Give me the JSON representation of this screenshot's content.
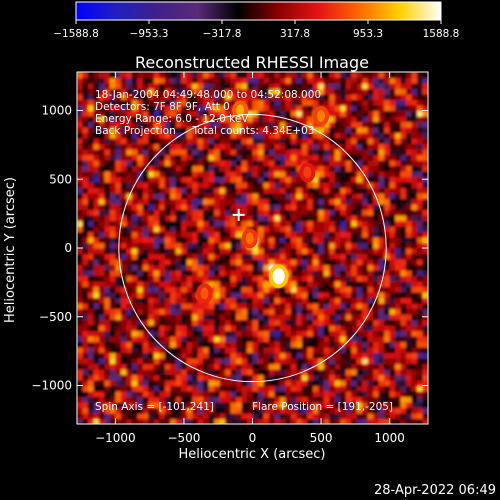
{
  "chart_data": {
    "type": "heatmap",
    "title": "Reconstructed RHESSI Image",
    "xlabel": "Heliocentric X (arcsec)",
    "ylabel": "Heliocentric Y (arcsec)",
    "xlim": [
      -1280,
      1280
    ],
    "ylim": [
      -1280,
      1280
    ],
    "x_ticks": [
      -1000,
      -500,
      0,
      500,
      1000
    ],
    "y_ticks": [
      -1000,
      -500,
      0,
      500,
      1000
    ],
    "x_tick_labels": [
      "−1000",
      "−500",
      "0",
      "500",
      "1000"
    ],
    "y_tick_labels": [
      "−1000",
      "−500",
      "0",
      "500",
      "1000"
    ],
    "colorbar": {
      "range": [
        -1588.8,
        1588.8
      ],
      "ticks": [
        -1588.8,
        -953.3,
        -317.8,
        317.8,
        953.3,
        1588.8
      ],
      "tick_labels": [
        "−1588.8",
        "−953.3",
        "−317.8",
        "317.8",
        "953.3",
        "1588.8"
      ],
      "colors": [
        "#0000ff",
        "#2020c0",
        "#40208a",
        "#5a2a78",
        "#000000",
        "#8c0000",
        "#e61414",
        "#ff6a00",
        "#ffd200",
        "#ffffff"
      ]
    },
    "info_lines": [
      "18-Jan-2004 04:49:48.000 to 04:52:08.000",
      "Detectors: 7F 8F 9F, Att 0",
      "Energy Range: 6.0 - 12.0 keV",
      "Back Projection     Total counts: 4.34E+03"
    ],
    "footer_left": "Spin Axis = [-101,241]",
    "footer_right": "Flare Position = [191,-205]",
    "solar_limb_radius": 975,
    "spin_axis": [
      -101,
      241
    ],
    "flare_position": [
      191,
      -205
    ],
    "bright_sources": [
      {
        "x": 191,
        "y": -205,
        "peak": 1588.8
      },
      {
        "x": -90,
        "y": 1000,
        "peak": 1100
      },
      {
        "x": -20,
        "y": 70,
        "peak": 900
      },
      {
        "x": 500,
        "y": 960,
        "peak": 950
      },
      {
        "x": 400,
        "y": 550,
        "peak": 700
      },
      {
        "x": -350,
        "y": -330,
        "peak": 800
      }
    ]
  },
  "timestamp": "28-Apr-2022 06:49"
}
